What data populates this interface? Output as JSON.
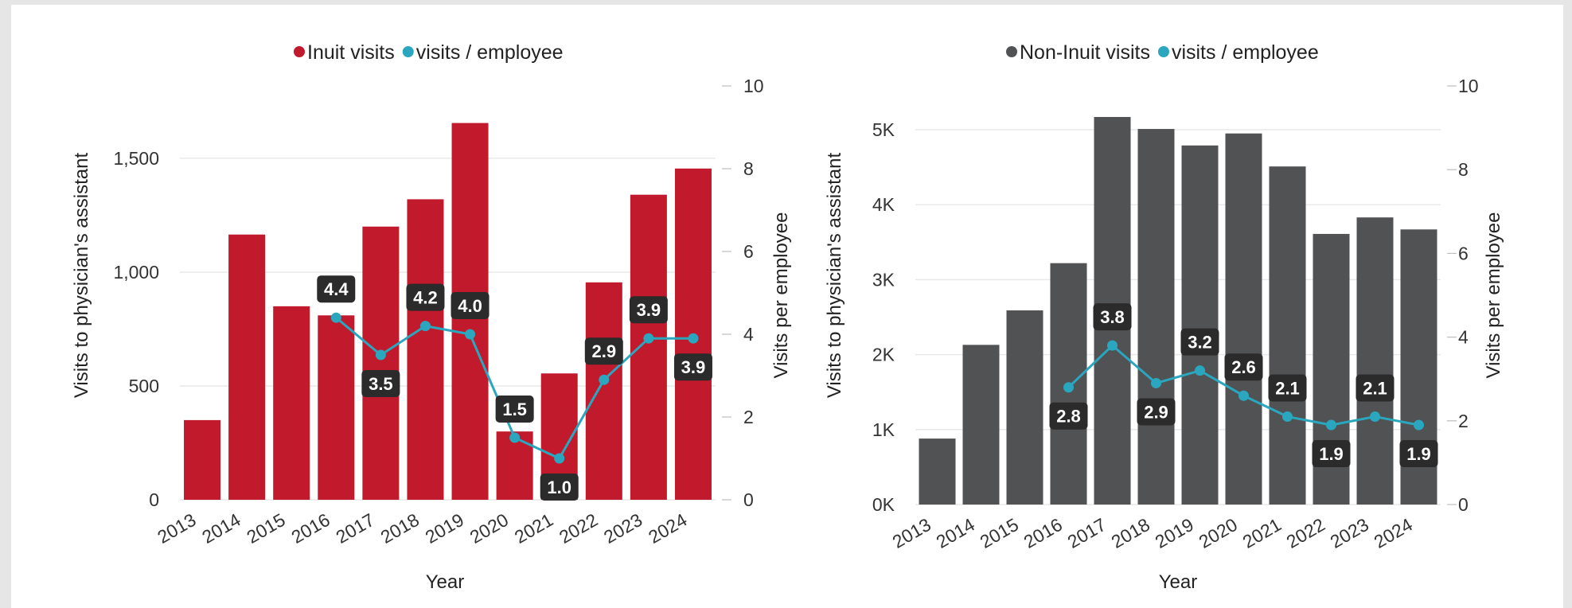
{
  "colors": {
    "inuit_bar": "#c01a2c",
    "noninuit_bar": "#505254",
    "line": "#2aa7bf",
    "label_bg": "#2b2b2b",
    "grid": "#e9e9e9"
  },
  "chart_data": [
    {
      "type": "bar",
      "categories": [
        "2013",
        "2014",
        "2015",
        "2016",
        "2017",
        "2018",
        "2019",
        "2020",
        "2021",
        "2022",
        "2023",
        "2024"
      ],
      "series": [
        {
          "name": "Inuit visits",
          "kind": "bar",
          "axis": "left",
          "values": [
            350,
            1165,
            850,
            810,
            1200,
            1320,
            1655,
            300,
            555,
            955,
            1340,
            1455
          ]
        },
        {
          "name": "visits / employee",
          "kind": "line",
          "axis": "right",
          "values": [
            null,
            null,
            null,
            4.4,
            3.5,
            4.2,
            4.0,
            1.5,
            1.0,
            2.9,
            3.9,
            3.9
          ],
          "labels": [
            null,
            null,
            null,
            "4.4",
            "3.5",
            "4.2",
            "4.0",
            "1.5",
            "1.0",
            "2.9",
            "3.9",
            "3.9"
          ],
          "label_pos": [
            null,
            null,
            null,
            "above",
            "below",
            "above",
            "above",
            "above",
            "below",
            "above",
            "above",
            "below"
          ]
        }
      ],
      "xlabel": "Year",
      "ylabel": "Visits to physician's assistant",
      "y2label": "Visits per employee",
      "ylim": [
        0,
        1650
      ],
      "y2lim": [
        0,
        10
      ],
      "yticks": [
        0,
        500,
        1000,
        1500
      ],
      "ytick_labels": [
        "0",
        "500",
        "1,000",
        "1,500"
      ],
      "y2ticks": [
        0,
        2,
        4,
        6,
        8,
        10
      ],
      "y2tick_labels": [
        "0",
        "2",
        "4",
        "6",
        "8",
        "10"
      ],
      "grid": true,
      "legend_position": "top-center"
    },
    {
      "type": "bar",
      "categories": [
        "2013",
        "2014",
        "2015",
        "2016",
        "2017",
        "2018",
        "2019",
        "2020",
        "2021",
        "2022",
        "2023",
        "2024"
      ],
      "series": [
        {
          "name": "Non-Inuit visits",
          "kind": "bar",
          "axis": "left",
          "values": [
            880,
            2130,
            2590,
            3220,
            5170,
            5010,
            4790,
            4950,
            4510,
            3610,
            3830,
            3670
          ]
        },
        {
          "name": "visits / employee",
          "kind": "line",
          "axis": "right",
          "values": [
            null,
            null,
            null,
            2.8,
            3.8,
            2.9,
            3.2,
            2.6,
            2.1,
            1.9,
            2.1,
            1.9
          ],
          "labels": [
            null,
            null,
            null,
            "2.8",
            "3.8",
            "2.9",
            "3.2",
            "2.6",
            "2.1",
            "1.9",
            "2.1",
            "1.9"
          ],
          "label_pos": [
            null,
            null,
            null,
            "below",
            "above",
            "below",
            "above",
            "above",
            "above",
            "below",
            "above",
            "below"
          ]
        }
      ],
      "xlabel": "Year",
      "ylabel": "Visits to physician's assistant",
      "y2label": "Visits per employee",
      "ylim": [
        0,
        5000
      ],
      "y2lim": [
        0,
        10
      ],
      "yticks": [
        0,
        1000,
        2000,
        3000,
        4000,
        5000
      ],
      "ytick_labels": [
        "0K",
        "1K",
        "2K",
        "3K",
        "4K",
        "5K"
      ],
      "y2ticks": [
        0,
        2,
        4,
        6,
        8,
        10
      ],
      "y2tick_labels": [
        "0",
        "2",
        "4",
        "6",
        "8",
        "10"
      ],
      "grid": true,
      "legend_position": "top-center"
    }
  ]
}
